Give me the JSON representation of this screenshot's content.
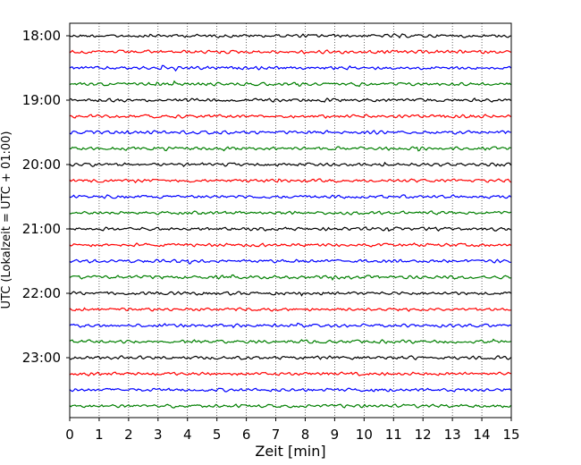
{
  "chart_data": {
    "type": "line",
    "xlabel": "Zeit  [min]",
    "ylabel": "UTC (Lokalzeit = UTC + 01:00)",
    "xlim": [
      0,
      15
    ],
    "x_ticks": [
      "0",
      "1",
      "2",
      "3",
      "4",
      "5",
      "6",
      "7",
      "8",
      "9",
      "10",
      "11",
      "12",
      "13",
      "14",
      "15"
    ],
    "y_tick_labels": [
      "18:00",
      "19:00",
      "20:00",
      "21:00",
      "22:00",
      "23:00"
    ],
    "trace_minutes": 15,
    "traces_per_hour": 4,
    "trace_count": 24,
    "trace_colors": [
      "#000000",
      "#ff0000",
      "#0000ff",
      "#007f00"
    ],
    "grid": "vertical dotted"
  }
}
